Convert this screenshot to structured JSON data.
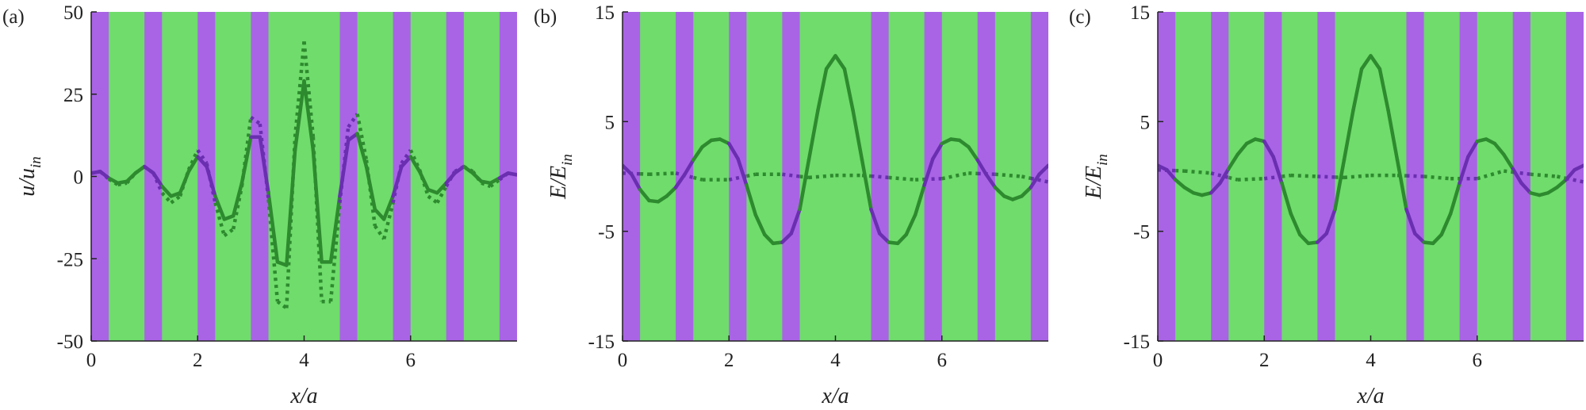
{
  "colors": {
    "green_band": "#6fdc6c",
    "purple_band": "#a964e6",
    "green_curve": "#2e8a2e",
    "purple_curve": "#6a2fb0",
    "axis": "#222222"
  },
  "chart_data": [
    {
      "type": "line",
      "panel_label": "(a)",
      "xlabel": "x/a",
      "ylabel": {
        "main": "u/u",
        "sub": "in"
      },
      "xlim": [
        0,
        8
      ],
      "ylim": [
        -50,
        50
      ],
      "xticks": [
        0,
        2,
        4,
        6
      ],
      "xtick_labels": [
        "0",
        "2",
        "4",
        "6"
      ],
      "yticks": [
        50,
        25,
        0,
        -25,
        -50
      ],
      "ytick_labels": [
        "50",
        "25",
        "0",
        "-25",
        "-50"
      ],
      "purple_bands": [
        [
          0,
          0.33
        ],
        [
          1,
          1.33
        ],
        [
          2,
          2.33
        ],
        [
          3,
          3.33
        ],
        [
          4.67,
          5
        ],
        [
          5.67,
          6
        ],
        [
          6.67,
          7
        ],
        [
          7.67,
          8
        ]
      ],
      "series": [
        {
          "style": "solid",
          "x": [
            0,
            0.17,
            0.33,
            0.5,
            0.67,
            0.83,
            1,
            1.17,
            1.33,
            1.5,
            1.67,
            1.83,
            2,
            2.17,
            2.33,
            2.5,
            2.67,
            2.83,
            3,
            3.17,
            3.33,
            3.5,
            3.67,
            3.83,
            4,
            4.17,
            4.33,
            4.5,
            4.67,
            4.83,
            5,
            5.17,
            5.33,
            5.5,
            5.67,
            5.83,
            6,
            6.17,
            6.33,
            6.5,
            6.67,
            6.83,
            7,
            7.17,
            7.33,
            7.5,
            7.67,
            7.83,
            8
          ],
          "y": [
            1,
            1.5,
            -0.5,
            -2,
            -1.5,
            1,
            3,
            1,
            -3,
            -6,
            -5,
            1.5,
            6,
            3,
            -6,
            -13,
            -12,
            -2,
            12,
            12,
            -5,
            -26,
            -27,
            8,
            29,
            8,
            -26,
            -26,
            -6,
            11,
            13,
            3,
            -10,
            -13,
            -6,
            3,
            6,
            1.5,
            -4,
            -5,
            -2,
            1,
            3,
            1,
            -1.5,
            -2,
            -0.5,
            1,
            0.5
          ]
        },
        {
          "style": "dotted",
          "x": [
            0,
            0.17,
            0.33,
            0.5,
            0.67,
            0.83,
            1,
            1.17,
            1.33,
            1.5,
            1.67,
            1.83,
            2,
            2.17,
            2.33,
            2.5,
            2.67,
            2.83,
            3,
            3.17,
            3.33,
            3.5,
            3.67,
            3.83,
            4,
            4.17,
            4.33,
            4.5,
            4.67,
            4.83,
            5,
            5.17,
            5.33,
            5.5,
            5.67,
            5.83,
            6,
            6.17,
            6.33,
            6.5,
            6.67,
            6.83,
            7,
            7.17,
            7.33,
            7.5,
            7.67,
            7.83,
            8
          ],
          "y": [
            1,
            1.5,
            -0.8,
            -2.5,
            -2,
            1,
            3,
            1,
            -5,
            -8,
            -6,
            2,
            8,
            4,
            -8,
            -18,
            -16,
            -3,
            18,
            16,
            -7,
            -38,
            -40,
            12,
            41,
            12,
            -38,
            -38,
            -8,
            15,
            19,
            5,
            -15,
            -19,
            -8,
            4,
            8,
            2,
            -6,
            -8,
            -3,
            1.5,
            3,
            1.5,
            -2,
            -3,
            -1,
            1,
            0.5
          ]
        }
      ]
    },
    {
      "type": "line",
      "panel_label": "(b)",
      "xlabel": "x/a",
      "ylabel": {
        "main": "E/E",
        "sub": "in"
      },
      "xlim": [
        0,
        8
      ],
      "ylim": [
        -15,
        15
      ],
      "xticks": [
        0,
        2,
        4,
        6
      ],
      "xtick_labels": [
        "0",
        "2",
        "4",
        "6"
      ],
      "yticks": [
        15,
        5,
        -5,
        -15
      ],
      "ytick_labels": [
        "15",
        "5",
        "-5",
        "-15"
      ],
      "purple_bands": [
        [
          0,
          0.33
        ],
        [
          1,
          1.33
        ],
        [
          2,
          2.33
        ],
        [
          3,
          3.33
        ],
        [
          4.67,
          5
        ],
        [
          5.67,
          6
        ],
        [
          6.67,
          7
        ],
        [
          7.67,
          8
        ]
      ],
      "series": [
        {
          "style": "solid",
          "x": [
            0,
            0.17,
            0.33,
            0.5,
            0.67,
            0.83,
            1,
            1.17,
            1.33,
            1.5,
            1.67,
            1.83,
            2,
            2.17,
            2.33,
            2.5,
            2.67,
            2.83,
            3,
            3.17,
            3.33,
            3.5,
            3.67,
            3.83,
            4,
            4.17,
            4.33,
            4.5,
            4.67,
            4.83,
            5,
            5.17,
            5.33,
            5.5,
            5.67,
            5.83,
            6,
            6.17,
            6.33,
            6.5,
            6.67,
            6.83,
            7,
            7.17,
            7.33,
            7.5,
            7.67,
            7.83,
            8
          ],
          "y": [
            1,
            0.2,
            -1.2,
            -2.2,
            -2.3,
            -1.8,
            -1,
            0.2,
            1.5,
            2.7,
            3.3,
            3.4,
            3,
            1.6,
            -0.8,
            -3.5,
            -5.3,
            -6.1,
            -6,
            -5.2,
            -3,
            1.5,
            6,
            9.8,
            11,
            9.8,
            6,
            1.5,
            -3,
            -5.2,
            -6,
            -6.1,
            -5.3,
            -3.5,
            -0.8,
            1.6,
            3,
            3.4,
            3.3,
            2.7,
            1.5,
            0.2,
            -1,
            -1.8,
            -2.1,
            -1.8,
            -1,
            0.2,
            1
          ]
        },
        {
          "style": "dotted",
          "x": [
            0,
            0.5,
            1,
            1.5,
            2,
            2.5,
            3,
            3.5,
            4,
            4.5,
            5,
            5.5,
            6,
            6.5,
            7,
            7.5,
            8
          ],
          "y": [
            0.3,
            0.2,
            0.3,
            -0.3,
            -0.3,
            0.2,
            0.2,
            -0.1,
            0.1,
            0.1,
            -0.1,
            -0.3,
            -0.2,
            0.3,
            0.2,
            0,
            -0.5
          ]
        }
      ]
    },
    {
      "type": "line",
      "panel_label": "(c)",
      "xlabel": "x/a",
      "ylabel": {
        "main": "E/E",
        "sub": "in"
      },
      "xlim": [
        0,
        8
      ],
      "ylim": [
        -15,
        15
      ],
      "xticks": [
        0,
        2,
        4,
        6
      ],
      "xtick_labels": [
        "0",
        "2",
        "4",
        "6"
      ],
      "yticks": [
        15,
        5,
        -5,
        -15
      ],
      "ytick_labels": [
        "15",
        "5",
        "-5",
        "-15"
      ],
      "purple_bands": [
        [
          0,
          0.33
        ],
        [
          1,
          1.33
        ],
        [
          2,
          2.33
        ],
        [
          3,
          3.33
        ],
        [
          4.67,
          5
        ],
        [
          5.67,
          6
        ],
        [
          6.67,
          7
        ],
        [
          7.67,
          8
        ]
      ],
      "series": [
        {
          "style": "solid",
          "x": [
            0,
            0.17,
            0.33,
            0.5,
            0.67,
            0.83,
            1,
            1.17,
            1.33,
            1.5,
            1.67,
            1.83,
            2,
            2.17,
            2.33,
            2.5,
            2.67,
            2.83,
            3,
            3.17,
            3.33,
            3.5,
            3.67,
            3.83,
            4,
            4.17,
            4.33,
            4.5,
            4.67,
            4.83,
            5,
            5.17,
            5.33,
            5.5,
            5.67,
            5.83,
            6,
            6.17,
            6.33,
            6.5,
            6.67,
            6.83,
            7,
            7.17,
            7.33,
            7.5,
            7.67,
            7.83,
            8
          ],
          "y": [
            1,
            0.6,
            -0.3,
            -1,
            -1.5,
            -1.7,
            -1.5,
            -0.6,
            0.7,
            2,
            3,
            3.4,
            3.2,
            1.8,
            -0.6,
            -3.4,
            -5.3,
            -6.1,
            -6,
            -5.2,
            -3,
            1.5,
            6,
            9.8,
            11,
            9.8,
            6,
            1.5,
            -3,
            -5.2,
            -6,
            -6.1,
            -5.3,
            -3.4,
            -0.6,
            1.8,
            3.2,
            3.4,
            3,
            2,
            0.7,
            -0.6,
            -1.5,
            -1.7,
            -1.5,
            -1,
            -0.3,
            0.6,
            1
          ]
        },
        {
          "style": "dotted",
          "x": [
            0,
            0.5,
            1,
            1.5,
            2,
            2.5,
            3,
            3.5,
            4,
            4.5,
            5,
            5.5,
            6,
            6.5,
            7,
            7.5,
            8
          ],
          "y": [
            0.6,
            0.5,
            0.3,
            -0.3,
            -0.2,
            0.1,
            0,
            -0.1,
            0.1,
            0.1,
            0,
            -0.2,
            -0.2,
            0.5,
            0.2,
            0,
            -0.5
          ]
        }
      ]
    }
  ]
}
